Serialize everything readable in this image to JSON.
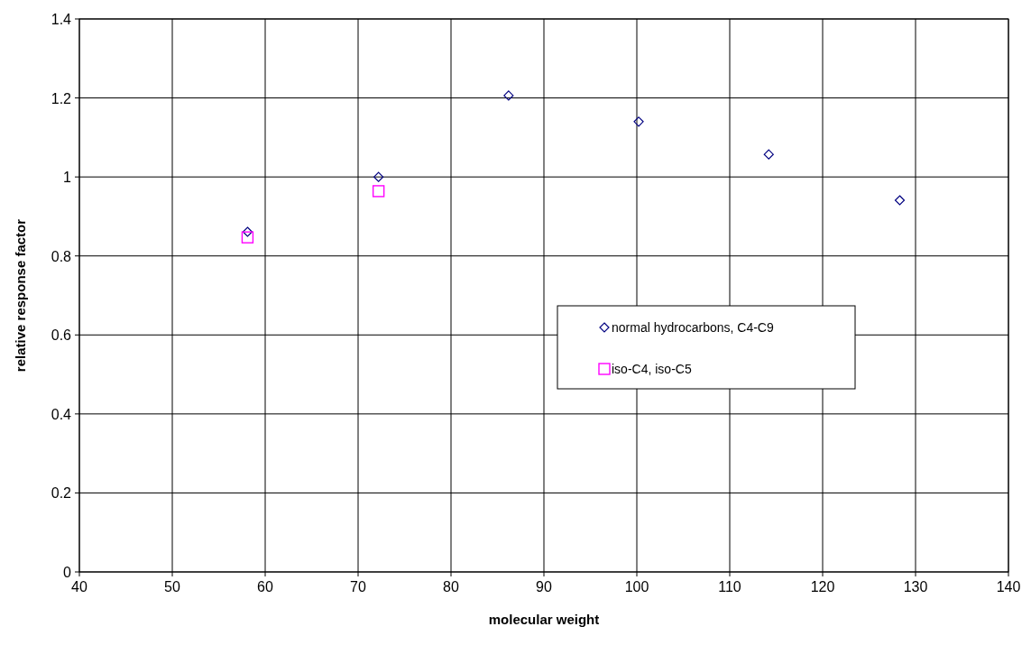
{
  "chart_data": {
    "type": "scatter",
    "xlabel": "molecular weight",
    "ylabel": "relative response factor",
    "xlim": [
      40,
      140
    ],
    "xticks": [
      40,
      50,
      60,
      70,
      80,
      90,
      100,
      110,
      120,
      130,
      140
    ],
    "ylim": [
      0,
      1.4
    ],
    "yticks": [
      0,
      0.2,
      0.4,
      0.6,
      0.8,
      1,
      1.2,
      1.4
    ],
    "grid": true,
    "legend": "right",
    "series": [
      {
        "name": "normal hydrocarbons, C4-C9",
        "color": "#000080",
        "marker": "diamond",
        "x": [
          58.1,
          72.2,
          86.2,
          100.2,
          114.2,
          128.3
        ],
        "values": [
          0.861,
          1.0,
          1.206,
          1.14,
          1.057,
          0.941
        ]
      },
      {
        "name": "iso-C4, iso-C5",
        "color": "#ff00ff",
        "marker": "square",
        "x": [
          58.1,
          72.2
        ],
        "values": [
          0.847,
          0.964
        ]
      }
    ]
  }
}
